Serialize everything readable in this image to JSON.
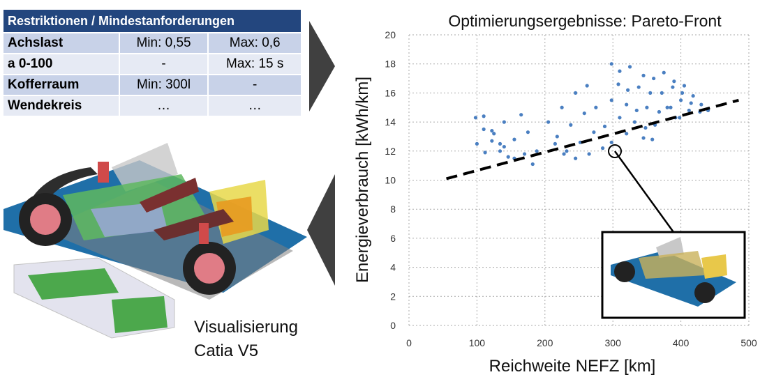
{
  "table": {
    "header": "Restriktionen / Mindestanforderungen",
    "rows": [
      [
        "Achslast",
        "Min: 0,55",
        "Max: 0,6"
      ],
      [
        "a 0-100",
        "-",
        "Max: 15 s"
      ],
      [
        "Kofferraum",
        "Min: 300l",
        "-"
      ],
      [
        "Wendekreis",
        "…",
        "…"
      ]
    ]
  },
  "caption": [
    "Visualisierung",
    "Catia V5"
  ],
  "chart_data": {
    "type": "scatter",
    "title": "Optimierungsergebnisse: Pareto-Front",
    "x_label": "Reichweite NEFZ [km]",
    "y_label": "Energieverbrauch [kWh/km]",
    "xlim": [
      0,
      500
    ],
    "ylim": [
      0,
      20
    ],
    "xticks": [
      0,
      100,
      200,
      300,
      400,
      500
    ],
    "yticks": [
      0,
      2,
      4,
      6,
      8,
      10,
      12,
      14,
      16,
      18,
      20
    ],
    "grid": true,
    "color": "#4a7fc1",
    "x": [
      98,
      110,
      122,
      134,
      110,
      122,
      134,
      146,
      125,
      140,
      155,
      140,
      155,
      170,
      182,
      165,
      175,
      188,
      100,
      112,
      205,
      218,
      232,
      245,
      225,
      238,
      252,
      265,
      245,
      258,
      272,
      285,
      262,
      275,
      288,
      298,
      215,
      228,
      298,
      308,
      320,
      332,
      345,
      310,
      322,
      335,
      348,
      358,
      325,
      338,
      350,
      362,
      298,
      310,
      320,
      345,
      355,
      368,
      360,
      372,
      385,
      398,
      375,
      388,
      400,
      412,
      390,
      402,
      415,
      428,
      405,
      418,
      430,
      440,
      380,
      392
    ],
    "y": [
      14.3,
      13.5,
      12.7,
      12.0,
      14.4,
      13.4,
      12.5,
      11.6,
      13.2,
      12.3,
      11.5,
      14.0,
      12.8,
      11.8,
      11.1,
      14.5,
      13.3,
      12.0,
      12.5,
      11.9,
      14.0,
      13.0,
      12.0,
      11.5,
      15.0,
      13.8,
      12.6,
      11.8,
      16.0,
      14.6,
      13.3,
      12.2,
      16.5,
      15.0,
      13.7,
      12.6,
      12.5,
      11.8,
      18.0,
      16.6,
      15.2,
      14.0,
      12.9,
      17.5,
      16.2,
      14.8,
      13.6,
      12.8,
      17.8,
      16.4,
      15.0,
      13.8,
      15.5,
      14.3,
      13.2,
      17.2,
      16.0,
      14.7,
      17.0,
      16.0,
      15.0,
      14.3,
      17.4,
      16.4,
      15.5,
      14.8,
      16.8,
      16.0,
      15.3,
      14.7,
      16.5,
      15.8,
      15.2,
      14.8,
      15.0,
      14.3
    ],
    "front_line": {
      "x": [
        55,
        485
      ],
      "y": [
        10.1,
        15.5
      ]
    }
  }
}
